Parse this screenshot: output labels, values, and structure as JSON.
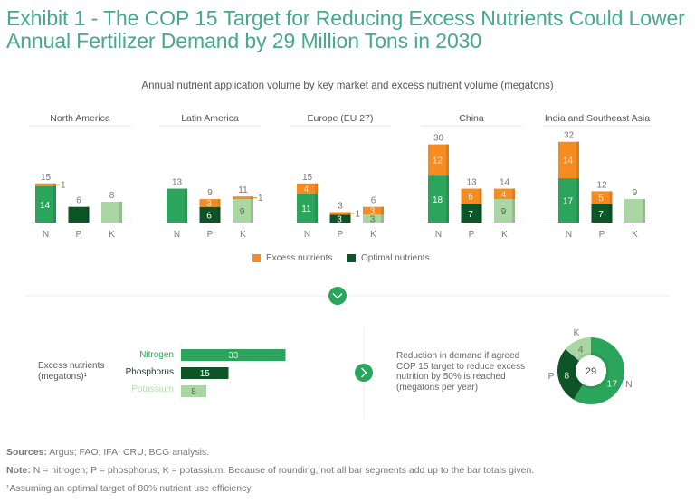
{
  "title": "Exhibit 1 - The COP 15 Target for Reducing Excess Nutrients Could Lower Annual Fertilizer Demand by 29 Million Tons in 2030",
  "colors": {
    "title": "#45a98c",
    "nitrogen_green": "#2ba55b",
    "optimal_dark_green": "#0d5527",
    "potassium_light_green": "#a9d6a3",
    "excess_orange": "#f48c22",
    "axis_line": "#e6e6e6"
  },
  "legend": {
    "excess": "Excess nutrients",
    "optimal": "Optimal nutrients"
  },
  "chart_data": [
    {
      "type": "bar",
      "stacked": true,
      "title": "Annual nutrient application volume by key market and excess nutrient volume (megatons)",
      "units": "megatons",
      "nutrient_categories": [
        "N",
        "P",
        "K"
      ],
      "groups": [
        {
          "name": "North America",
          "bars": [
            {
              "nutrient": "N",
              "base": 14,
              "excess": 1,
              "total": 15,
              "base_label": "14",
              "excess_label": "1",
              "excess_label_outside": true
            },
            {
              "nutrient": "P",
              "base": 6,
              "excess": 0,
              "total": 6,
              "base_label": "",
              "excess_label": ""
            },
            {
              "nutrient": "K",
              "base": 8,
              "excess": 0,
              "total": 8,
              "base_label": "",
              "excess_label": ""
            }
          ]
        },
        {
          "name": "Latin America",
          "bars": [
            {
              "nutrient": "N",
              "base": 13,
              "excess": 0,
              "total": 13,
              "base_label": "",
              "excess_label": ""
            },
            {
              "nutrient": "P",
              "base": 6,
              "excess": 3,
              "total": 9,
              "base_label": "6",
              "excess_label": "3"
            },
            {
              "nutrient": "K",
              "base": 9,
              "excess": 1,
              "total": 11,
              "base_label": "9",
              "excess_label": "1",
              "excess_label_outside": true
            }
          ]
        },
        {
          "name": "Europe (EU 27)",
          "bars": [
            {
              "nutrient": "N",
              "base": 11,
              "excess": 4,
              "total": 15,
              "base_label": "11",
              "excess_label": "4"
            },
            {
              "nutrient": "P",
              "base": 3,
              "excess": 1,
              "total": 3,
              "base_label": "3",
              "excess_label": "1",
              "excess_label_outside": true
            },
            {
              "nutrient": "K",
              "base": 3,
              "excess": 3,
              "total": 6,
              "base_label": "3",
              "excess_label": "3"
            }
          ]
        },
        {
          "name": "China",
          "bars": [
            {
              "nutrient": "N",
              "base": 18,
              "excess": 12,
              "total": 30,
              "base_label": "18",
              "excess_label": "12"
            },
            {
              "nutrient": "P",
              "base": 7,
              "excess": 6,
              "total": 13,
              "base_label": "7",
              "excess_label": "6"
            },
            {
              "nutrient": "K",
              "base": 9,
              "excess": 4,
              "total": 14,
              "base_label": "9",
              "excess_label": "4"
            }
          ]
        },
        {
          "name": "India and Southeast Asia",
          "bars": [
            {
              "nutrient": "N",
              "base": 17,
              "excess": 14,
              "total": 32,
              "base_label": "17",
              "excess_label": "14"
            },
            {
              "nutrient": "P",
              "base": 7,
              "excess": 5,
              "total": 12,
              "base_label": "7",
              "excess_label": "5"
            },
            {
              "nutrient": "K",
              "base": 9,
              "excess": 0,
              "total": 9,
              "base_label": "",
              "excess_label": ""
            }
          ]
        }
      ],
      "legend": [
        "Excess nutrients",
        "Optimal nutrients"
      ],
      "legend_position": "bottom",
      "grid": false
    },
    {
      "type": "bar",
      "orientation": "horizontal",
      "title": "Excess nutrients (megatons)¹",
      "categories": [
        "Nitrogen",
        "Phosphorus",
        "Potassium"
      ],
      "values": [
        33,
        15,
        8
      ]
    },
    {
      "type": "pie",
      "donut": true,
      "title": "Reduction in demand if agreed COP 15 target to reduce excess nutrition by 50% is reached (megatons per year)",
      "center_label": "29",
      "categories": [
        "N",
        "P",
        "K"
      ],
      "values": [
        17,
        8,
        4
      ]
    }
  ],
  "excess_section": {
    "label_line1": "Excess nutrients",
    "label_line2": "(megatons)¹"
  },
  "reduction_text": "Reduction in demand if agreed COP 15 target to reduce excess nutrition by 50% is reached (megatons per year)",
  "buttons": {
    "expand": "chevron-down",
    "next": "chevron-right"
  },
  "footer": {
    "sources_label": "Sources:",
    "sources_text": " Argus; FAO; IFA; CRU; BCG analysis.",
    "note_label": "Note:",
    "note_text": " N = nitrogen; P = phosphorus; K = potassium. Because of rounding, not all bar segments add up to the bar totals given.",
    "footnote": "¹Assuming an optimal target of 80% nutrient use efficiency."
  }
}
